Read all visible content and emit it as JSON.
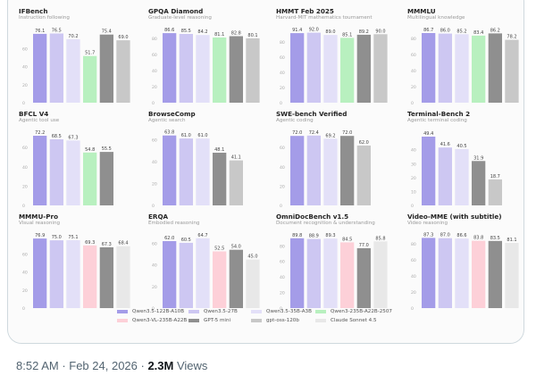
{
  "colors": {
    "Qwen3.5-122B-A10B": "#a49ce8",
    "Qwen3.5-27B": "#cdc7f2",
    "Qwen3.5-35B-A3B": "#e3e0f8",
    "Qwen3-235B-A22B-2507": "#b8f0bf",
    "Qwen3-VL-235B-A22B": "#fdd0d8",
    "GPT-5 mini": "#8f8f8f",
    "gpt-oss-120b": "#c8c8c8",
    "Claude Sonnet 4.5": "#e8e8e8"
  },
  "legend": [
    {
      "label": "Qwen3.5-122B-A10B"
    },
    {
      "label": "Qwen3.5-27B"
    },
    {
      "label": "Qwen3.5-35B-A3B"
    },
    {
      "label": "Qwen3-235B-A22B-2507"
    },
    {
      "label": "Qwen3-VL-235B-A22B"
    },
    {
      "label": "GPT-5 mini"
    },
    {
      "label": "gpt-oss-120b"
    },
    {
      "label": "Claude Sonnet 4.5"
    }
  ],
  "chart_data": [
    {
      "type": "bar",
      "title": "IFBench",
      "subtitle": "Instruction following",
      "ylim": [
        0,
        80
      ],
      "yticks": [
        0,
        20,
        40,
        60
      ],
      "series": [
        "Qwen3.5-122B-A10B",
        "Qwen3.5-27B",
        "Qwen3.5-35B-A3B",
        "Qwen3-235B-A22B-2507",
        "GPT-5 mini",
        "gpt-oss-120b"
      ],
      "values": [
        76.1,
        76.5,
        70.2,
        51.7,
        75.4,
        69.0
      ],
      "labels": [
        "76.1",
        "76.5",
        "70.2",
        "51.7",
        "75.4",
        "69.0"
      ]
    },
    {
      "type": "bar",
      "title": "GPQA Diamond",
      "subtitle": "Graduate-level reasoning",
      "ylim": [
        0,
        90
      ],
      "yticks": [
        0,
        20,
        40,
        60,
        80
      ],
      "series": [
        "Qwen3.5-122B-A10B",
        "Qwen3.5-27B",
        "Qwen3.5-35B-A3B",
        "Qwen3-235B-A22B-2507",
        "GPT-5 mini",
        "gpt-oss-120b"
      ],
      "values": [
        86.6,
        85.5,
        84.2,
        81.1,
        82.8,
        80.1
      ],
      "labels": [
        "86.6",
        "85.5",
        "84.2",
        "81.1",
        "82.8",
        "80.1"
      ]
    },
    {
      "type": "bar",
      "title": "HMMT Feb 2025",
      "subtitle": "Harvard-MIT mathematics tournament",
      "ylim": [
        0,
        95
      ],
      "yticks": [
        0,
        20,
        40,
        60,
        80
      ],
      "series": [
        "Qwen3.5-122B-A10B",
        "Qwen3.5-27B",
        "Qwen3.5-35B-A3B",
        "Qwen3-235B-A22B-2507",
        "GPT-5 mini",
        "gpt-oss-120b"
      ],
      "values": [
        91.4,
        92.0,
        89.0,
        85.1,
        89.2,
        90.0
      ],
      "labels": [
        "91.4",
        "92.0",
        "89.0",
        "85.1",
        "89.2",
        "90.0"
      ]
    },
    {
      "type": "bar",
      "title": "MMMLU",
      "subtitle": "Multilingual knowledge",
      "ylim": [
        0,
        90
      ],
      "yticks": [
        0,
        20,
        40,
        60,
        80
      ],
      "series": [
        "Qwen3.5-122B-A10B",
        "Qwen3.5-27B",
        "Qwen3.5-35B-A3B",
        "Qwen3-235B-A22B-2507",
        "GPT-5 mini",
        "gpt-oss-120b"
      ],
      "values": [
        86.7,
        86.0,
        85.2,
        83.4,
        86.2,
        78.2
      ],
      "labels": [
        "86.7",
        "86.0",
        "85.2",
        "83.4",
        "86.2",
        "78.2"
      ]
    },
    {
      "type": "bar",
      "title": "BFCL V4",
      "subtitle": "Agentic tool use",
      "ylim": [
        0,
        75
      ],
      "yticks": [
        0,
        20,
        40,
        60
      ],
      "series": [
        "Qwen3.5-122B-A10B",
        "Qwen3.5-27B",
        "Qwen3.5-35B-A3B",
        "Qwen3-235B-A22B-2507",
        "GPT-5 mini"
      ],
      "values": [
        72.2,
        68.5,
        67.3,
        54.8,
        55.5
      ],
      "labels": [
        "72.2",
        "68.5",
        "67.3",
        "54.8",
        "55.5"
      ]
    },
    {
      "type": "bar",
      "title": "BrowseComp",
      "subtitle": "Agentic search",
      "ylim": [
        0,
        66
      ],
      "yticks": [
        0,
        20,
        40,
        60
      ],
      "series": [
        "Qwen3.5-122B-A10B",
        "Qwen3.5-27B",
        "Qwen3.5-35B-A3B",
        "GPT-5 mini",
        "gpt-oss-120b"
      ],
      "values": [
        63.8,
        61.0,
        61.0,
        48.1,
        41.1
      ],
      "labels": [
        "63.8",
        "61.0",
        "61.0",
        "48.1",
        "41.1"
      ]
    },
    {
      "type": "bar",
      "title": "SWE-bench Verified",
      "subtitle": "Agentic coding",
      "ylim": [
        0,
        75
      ],
      "yticks": [
        0,
        20,
        40,
        60
      ],
      "series": [
        "Qwen3.5-122B-A10B",
        "Qwen3.5-27B",
        "Qwen3.5-35B-A3B",
        "GPT-5 mini",
        "gpt-oss-120b"
      ],
      "values": [
        72.0,
        72.4,
        69.2,
        72.0,
        62.0
      ],
      "labels": [
        "72.0",
        "72.4",
        "69.2",
        "72.0",
        "62.0"
      ]
    },
    {
      "type": "bar",
      "title": "Terminal-Bench 2",
      "subtitle": "Agentic terminal coding",
      "ylim": [
        0,
        52
      ],
      "yticks": [
        0,
        10,
        20,
        30,
        40
      ],
      "series": [
        "Qwen3.5-122B-A10B",
        "Qwen3.5-27B",
        "Qwen3.5-35B-A3B",
        "GPT-5 mini",
        "gpt-oss-120b"
      ],
      "values": [
        49.4,
        41.6,
        40.5,
        31.9,
        18.7
      ],
      "labels": [
        "49.4",
        "41.6",
        "40.5",
        "31.9",
        "18.7"
      ]
    },
    {
      "type": "bar",
      "title": "MMMU-Pro",
      "subtitle": "Visual reasoning",
      "ylim": [
        0,
        80
      ],
      "yticks": [
        0,
        20,
        40,
        60
      ],
      "series": [
        "Qwen3.5-122B-A10B",
        "Qwen3.5-27B",
        "Qwen3.5-35B-A3B",
        "Qwen3-VL-235B-A22B",
        "GPT-5 mini",
        "Claude Sonnet 4.5"
      ],
      "values": [
        76.9,
        75.0,
        75.1,
        69.3,
        67.3,
        68.4
      ],
      "labels": [
        "76.9",
        "75.0",
        "75.1",
        "69.3",
        "67.3",
        "68.4"
      ]
    },
    {
      "type": "bar",
      "title": "ERQA",
      "subtitle": "Embodied reasoning",
      "ylim": [
        0,
        67
      ],
      "yticks": [
        0,
        20,
        40,
        60
      ],
      "series": [
        "Qwen3.5-122B-A10B",
        "Qwen3.5-27B",
        "Qwen3.5-35B-A3B",
        "Qwen3-VL-235B-A22B",
        "GPT-5 mini",
        "Claude Sonnet 4.5"
      ],
      "values": [
        62.0,
        60.5,
        64.7,
        52.5,
        54.0,
        45.0
      ],
      "labels": [
        "62.0",
        "60.5",
        "64.7",
        "52.5",
        "54.0",
        "45.0"
      ]
    },
    {
      "type": "bar",
      "title": "OmniDocBench v1.5",
      "subtitle": "Document recognition & understanding",
      "ylim": [
        0,
        93
      ],
      "yticks": [
        0,
        20,
        40,
        60,
        80
      ],
      "series": [
        "Qwen3.5-122B-A10B",
        "Qwen3.5-27B",
        "Qwen3.5-35B-A3B",
        "Qwen3-VL-235B-A22B",
        "GPT-5 mini",
        "Claude Sonnet 4.5"
      ],
      "values": [
        89.8,
        88.9,
        89.3,
        84.5,
        77.0,
        85.8
      ],
      "labels": [
        "89.8",
        "88.9",
        "89.3",
        "84.5",
        "77.0",
        "85.8"
      ]
    },
    {
      "type": "bar",
      "title": "Video-MME (with subtitle)",
      "subtitle": "Video reasoning",
      "ylim": [
        0,
        90
      ],
      "yticks": [
        0,
        20,
        40,
        60,
        80
      ],
      "series": [
        "Qwen3.5-122B-A10B",
        "Qwen3.5-27B",
        "Qwen3.5-35B-A3B",
        "Qwen3-VL-235B-A22B",
        "GPT-5 mini",
        "Claude Sonnet 4.5"
      ],
      "values": [
        87.3,
        87.0,
        86.6,
        83.8,
        83.5,
        81.1
      ],
      "labels": [
        "87.3",
        "87.0",
        "86.6",
        "83.8",
        "83.5",
        "81.1"
      ]
    }
  ],
  "footer": {
    "time": "8:52 AM",
    "sep1": " · ",
    "date": "Feb 24, 2026",
    "sep2": " · ",
    "views_count": "2.3M",
    "views_label": " Views"
  }
}
